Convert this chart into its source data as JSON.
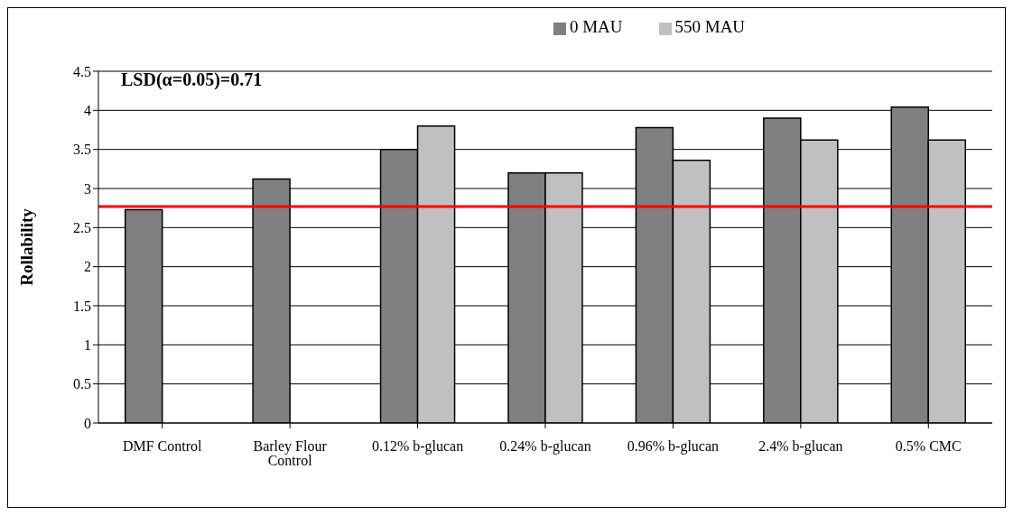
{
  "chart_data": {
    "type": "bar",
    "ylabel": "Rollability",
    "categories": [
      "DMF Control",
      "Barley Flour Control",
      "0.12% b-glucan",
      "0.24% b-glucan",
      "0.96% b-glucan",
      "2.4% b-glucan",
      "0.5% CMC"
    ],
    "series": [
      {
        "name": "0 MAU",
        "color": "#808080",
        "values": [
          2.73,
          3.12,
          3.5,
          3.2,
          3.78,
          3.9,
          4.04
        ]
      },
      {
        "name": "550 MAU",
        "color": "#c0c0c0",
        "values": [
          null,
          null,
          3.8,
          3.2,
          3.36,
          3.62,
          3.62
        ]
      }
    ],
    "ylim": [
      0,
      4.5
    ],
    "yticks": [
      0,
      0.5,
      1,
      1.5,
      2,
      2.5,
      3,
      3.5,
      4,
      4.5
    ],
    "grid": "y",
    "legend": "top",
    "ref_lines": [
      {
        "axis": "y",
        "value": 2.77,
        "color": "#ff0000"
      }
    ],
    "annotations": [
      "LSD(α=0.05)=0.71"
    ]
  }
}
